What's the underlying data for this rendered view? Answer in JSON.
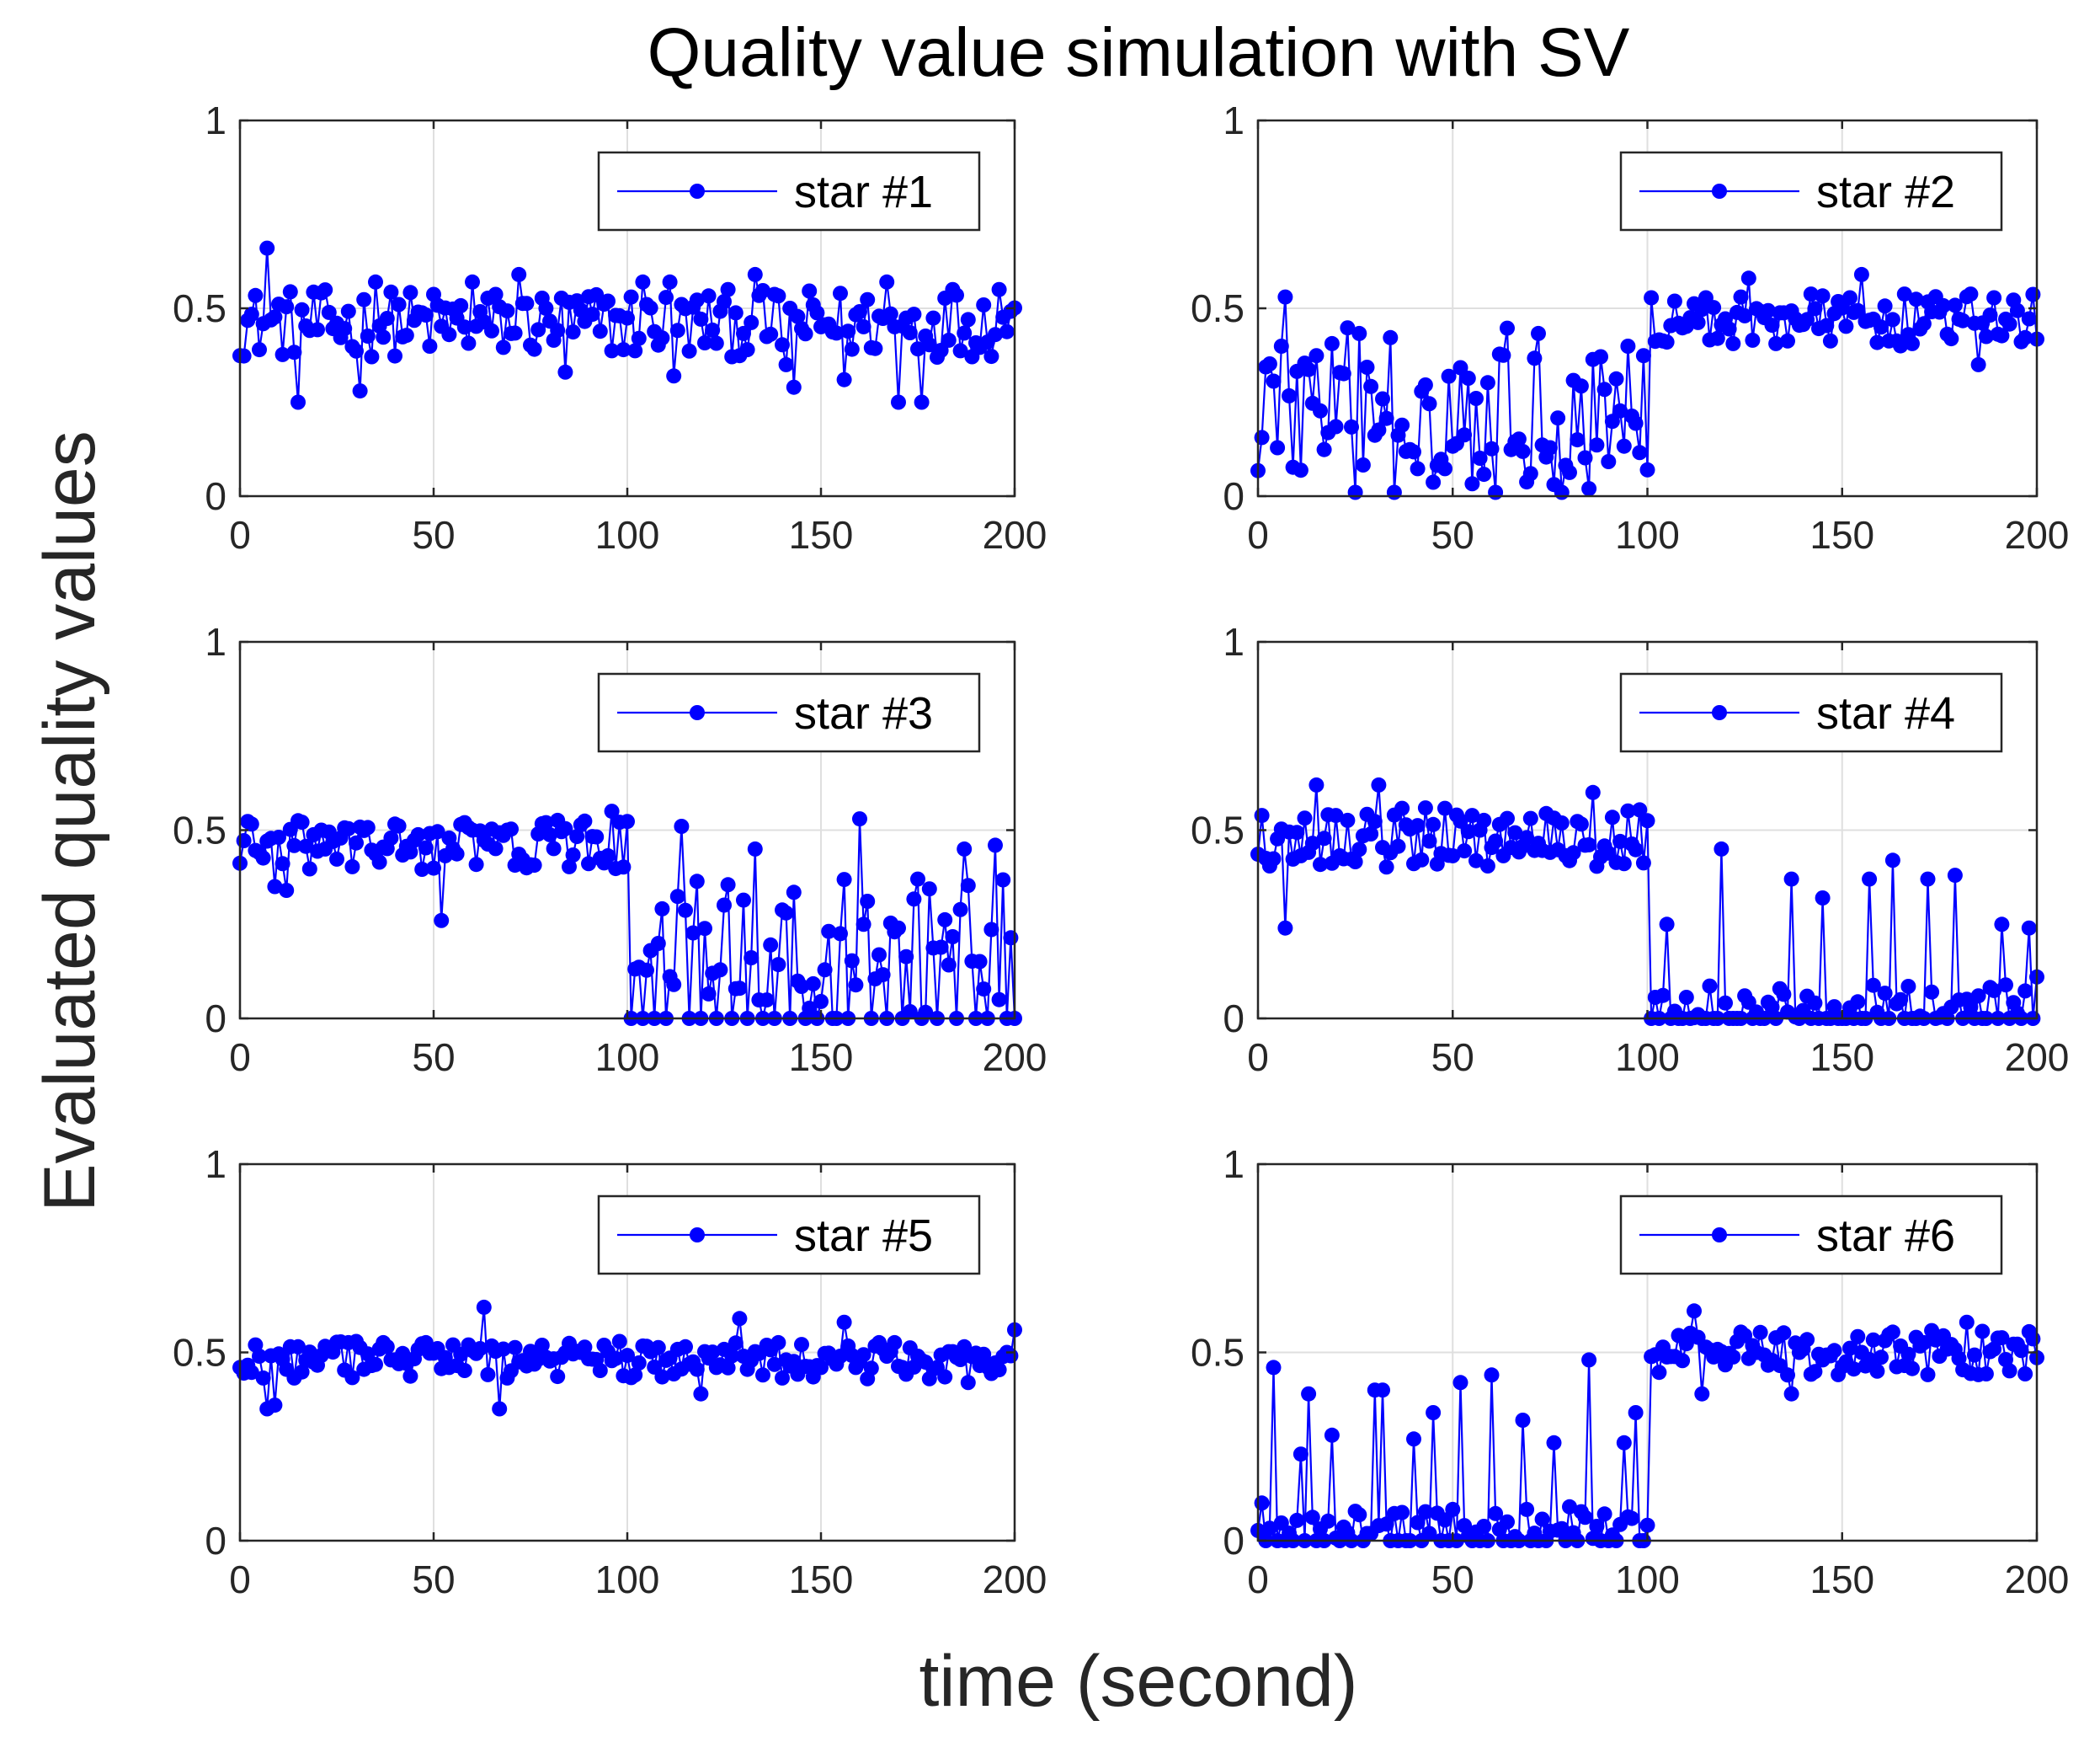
{
  "figure": {
    "title": "Quality value simulation with SV",
    "xlabel": "time (second)",
    "ylabel": "Evaluated quality values"
  },
  "colors": {
    "series": "#0000ff",
    "axis": "#262626",
    "grid": "#dfdfdf",
    "legend_border": "#262626"
  },
  "chart_data": [
    {
      "type": "line",
      "name": "star #1",
      "xlim": [
        0,
        200
      ],
      "ylim": [
        0,
        1
      ],
      "xticks": [
        0,
        50,
        100,
        150,
        200
      ],
      "yticks": [
        0,
        0.5,
        1
      ],
      "grid": true,
      "legend": "top-right",
      "segments": [
        {
          "start": 0,
          "end": 200,
          "base": 0.46,
          "amp": 0.09,
          "spikes": [
            [
              7,
              0.66
            ],
            [
              15,
              0.25
            ],
            [
              31,
              0.28
            ],
            [
              35,
              0.57
            ],
            [
              60,
              0.57
            ],
            [
              72,
              0.59
            ],
            [
              84,
              0.33
            ],
            [
              104,
              0.57
            ],
            [
              111,
              0.57
            ],
            [
              112,
              0.32
            ],
            [
              133,
              0.59
            ],
            [
              141,
              0.35
            ],
            [
              143,
              0.29
            ],
            [
              156,
              0.31
            ],
            [
              167,
              0.57
            ],
            [
              170,
              0.25
            ],
            [
              176,
              0.25
            ],
            [
              184,
              0.55
            ],
            [
              196,
              0.55
            ]
          ]
        }
      ]
    },
    {
      "type": "line",
      "name": "star #2",
      "xlim": [
        0,
        200
      ],
      "ylim": [
        0,
        1
      ],
      "xticks": [
        0,
        50,
        100,
        150,
        200
      ],
      "yticks": [
        0,
        0.5,
        1
      ],
      "grid": true,
      "legend": "top-right",
      "segments": [
        {
          "start": 0,
          "end": 100,
          "base": 0.24,
          "amp": 0.21,
          "spikes": [
            [
              7,
              0.53
            ],
            [
              25,
              0.01
            ],
            [
              35,
              0.01
            ],
            [
              61,
              0.01
            ],
            [
              78,
              0.01
            ],
            [
              85,
              0.02
            ],
            [
              100,
              0.07
            ]
          ]
        },
        {
          "start": 101,
          "end": 200,
          "base": 0.47,
          "amp": 0.07,
          "spikes": [
            [
              126,
              0.58
            ],
            [
              155,
              0.59
            ],
            [
              185,
              0.35
            ]
          ]
        }
      ]
    },
    {
      "type": "line",
      "name": "star #3",
      "xlim": [
        0,
        200
      ],
      "ylim": [
        0,
        1
      ],
      "xticks": [
        0,
        50,
        100,
        150,
        200
      ],
      "yticks": [
        0,
        0.5,
        1
      ],
      "grid": true,
      "legend": "top-right",
      "segments": [
        {
          "start": 0,
          "end": 100,
          "base": 0.46,
          "amp": 0.07,
          "spikes": [
            [
              9,
              0.35
            ],
            [
              12,
              0.34
            ],
            [
              52,
              0.26
            ],
            [
              96,
              0.55
            ]
          ]
        },
        {
          "start": 101,
          "end": 200,
          "base": 0.17,
          "amp": 0.2,
          "spikes": [
            [
              114,
              0.51
            ],
            [
              133,
              0.45
            ],
            [
              160,
              0.53
            ],
            [
              187,
              0.45
            ],
            [
              195,
              0.46
            ]
          ],
          "zeros": [
            101,
            104,
            107,
            110,
            116,
            119,
            123,
            127,
            131,
            138,
            142,
            146,
            149,
            153,
            157,
            163,
            167,
            171,
            176,
            180,
            185,
            190,
            193,
            200
          ]
        }
      ]
    },
    {
      "type": "line",
      "name": "star #4",
      "xlim": [
        0,
        200
      ],
      "ylim": [
        0,
        1
      ],
      "xticks": [
        0,
        50,
        100,
        150,
        200
      ],
      "yticks": [
        0,
        0.5,
        1
      ],
      "grid": true,
      "legend": "top-right",
      "segments": [
        {
          "start": 0,
          "end": 100,
          "base": 0.48,
          "amp": 0.08,
          "spikes": [
            [
              7,
              0.24
            ],
            [
              15,
              0.62
            ],
            [
              31,
              0.62
            ],
            [
              86,
              0.6
            ]
          ]
        },
        {
          "start": 101,
          "end": 200,
          "base": 0.03,
          "amp": 0.06,
          "spikes": [
            [
              105,
              0.25
            ],
            [
              119,
              0.45
            ],
            [
              137,
              0.37
            ],
            [
              145,
              0.32
            ],
            [
              157,
              0.37
            ],
            [
              163,
              0.42
            ],
            [
              172,
              0.37
            ],
            [
              179,
              0.38
            ],
            [
              191,
              0.25
            ],
            [
              198,
              0.24
            ],
            [
              200,
              0.11
            ]
          ],
          "zeros": [
            101,
            103,
            106,
            109,
            111,
            114,
            117,
            121,
            124,
            127,
            130,
            133,
            139,
            142,
            147,
            150,
            153,
            156,
            160,
            166,
            169,
            174,
            177,
            181,
            184,
            187,
            193,
            196,
            199
          ]
        }
      ]
    },
    {
      "type": "line",
      "name": "star #5",
      "xlim": [
        0,
        200
      ],
      "ylim": [
        0,
        1
      ],
      "xticks": [
        0,
        50,
        100,
        150,
        200
      ],
      "yticks": [
        0,
        0.5,
        1
      ],
      "grid": true,
      "legend": "top-right",
      "segments": [
        {
          "start": 0,
          "end": 200,
          "base": 0.48,
          "amp": 0.05,
          "spikes": [
            [
              7,
              0.35
            ],
            [
              9,
              0.36
            ],
            [
              63,
              0.62
            ],
            [
              67,
              0.35
            ],
            [
              119,
              0.39
            ],
            [
              129,
              0.59
            ],
            [
              156,
              0.58
            ],
            [
              188,
              0.42
            ],
            [
              200,
              0.56
            ]
          ]
        }
      ]
    },
    {
      "type": "line",
      "name": "star #6",
      "xlim": [
        0,
        200
      ],
      "ylim": [
        0,
        1
      ],
      "xticks": [
        0,
        50,
        100,
        150,
        200
      ],
      "yticks": [
        0,
        0.5,
        1
      ],
      "grid": true,
      "legend": "top-right",
      "segments": [
        {
          "start": 0,
          "end": 100,
          "base": 0.04,
          "amp": 0.05,
          "spikes": [
            [
              1,
              0.1
            ],
            [
              4,
              0.46
            ],
            [
              11,
              0.23
            ],
            [
              13,
              0.39
            ],
            [
              19,
              0.28
            ],
            [
              30,
              0.4
            ],
            [
              32,
              0.4
            ],
            [
              40,
              0.27
            ],
            [
              45,
              0.34
            ],
            [
              52,
              0.42
            ],
            [
              60,
              0.44
            ],
            [
              68,
              0.32
            ],
            [
              76,
              0.26
            ],
            [
              85,
              0.48
            ],
            [
              94,
              0.26
            ],
            [
              97,
              0.34
            ]
          ],
          "zeros": [
            2,
            5,
            7,
            9,
            12,
            15,
            17,
            21,
            24,
            27,
            34,
            36,
            38,
            42,
            47,
            49,
            55,
            57,
            63,
            65,
            70,
            72,
            74,
            79,
            82,
            88,
            90,
            92,
            99
          ]
        },
        {
          "start": 101,
          "end": 200,
          "base": 0.5,
          "amp": 0.06,
          "spikes": [
            [
              112,
              0.61
            ],
            [
              114,
              0.39
            ],
            [
              137,
              0.39
            ],
            [
              182,
              0.58
            ]
          ]
        }
      ]
    }
  ]
}
